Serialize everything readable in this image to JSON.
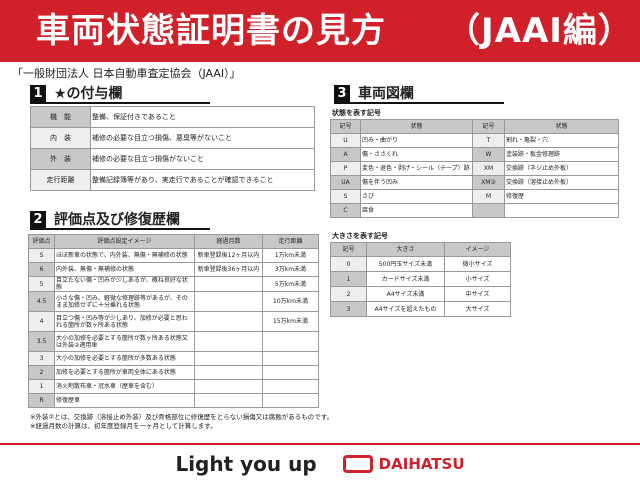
{
  "header": {
    "title": "車両状態証明書の見方",
    "subtitle": "（JAAI編）"
  },
  "org": "「一般財団法人 日本自動車査定協会（JAAI）」",
  "sec1": {
    "num": "1",
    "title": "★の付与欄",
    "rows": [
      [
        "機　能",
        "整備、保証付きであること"
      ],
      [
        "内　装",
        "補修の必要な目立つ損傷、悪臭等がないこと"
      ],
      [
        "外　装",
        "補修の必要な目立つ損傷がないこと"
      ],
      [
        "走行距離",
        "整備記録簿等があり、実走行であることが確認できること"
      ]
    ]
  },
  "sec2": {
    "num": "2",
    "title": "評価点及び修復歴欄",
    "headers": [
      "評価点",
      "評価点設定イメージ",
      "経過月数",
      "走行距離"
    ],
    "rows": [
      [
        "S",
        "ほぼ新車の状態で、内外装、無傷・無補修の状態",
        "新車登録後12ヶ月以内",
        "1万km未満"
      ],
      [
        "6",
        "内外装、無傷・無補修の状態",
        "新車登録後36ヶ月以内",
        "3万km未満"
      ],
      [
        "5",
        "目立たない傷・凹みが少しあるが、概ね良好な状態",
        "",
        "5万km未満"
      ],
      [
        "4.5",
        "小さな傷・凹み、軽微な修理跡等があるが、そのまま加修せずに十分乗れる状態",
        "",
        "10万km未満"
      ],
      [
        "4",
        "目立つ傷・凹み等が少しあり、加修が必要と思われる箇所が数ヶ所ある状態",
        "",
        "15万km未満"
      ],
      [
        "3.5",
        "大小の加修を必要とする箇所が数ヶ所ある状態又は外装②適用車",
        "",
        ""
      ],
      [
        "3",
        "大小の加修を必要とする箇所が多数ある状態",
        "",
        ""
      ],
      [
        "2",
        "加修を必要とする箇所が車両全体にある状態",
        "",
        ""
      ],
      [
        "1",
        "消火剤散布車・冠水車（歴車を含む）",
        "",
        ""
      ],
      [
        "R",
        "修復歴車",
        "",
        ""
      ]
    ]
  },
  "notes": [
    "※外装②とは、交換跡（溶接止め外装）及び骨格部位に修復歴をとらない損傷又は腐蝕があるものです。",
    "※経過月数の計算は、初年度登録月を一ヶ月として計算します。"
  ],
  "sec3": {
    "num": "3",
    "title": "車両図欄",
    "cap1": "状態を表す記号",
    "headers": [
      "記号",
      "状態",
      "記号",
      "状態"
    ],
    "rows": [
      [
        "U",
        "凹み・曲がり",
        "T",
        "割れ・亀裂・穴"
      ],
      [
        "A",
        "傷・ささくれ",
        "W",
        "塗装跡・板金修理跡"
      ],
      [
        "P",
        "変色・退色・剥げ・シール（テープ）跡",
        "XM",
        "交換跡（ネジ止め外板）"
      ],
      [
        "UA",
        "傷を伴う凹み",
        "XM②",
        "交換跡（溶接止め外板）"
      ],
      [
        "S",
        "さび",
        "M",
        "修復歴"
      ],
      [
        "C",
        "腐食",
        "",
        ""
      ]
    ],
    "cap2": "大きさを表す記号",
    "headers2": [
      "記号",
      "大きさ",
      "イメージ"
    ],
    "rows2": [
      [
        "0",
        "500円玉サイズ未満",
        "微小サイズ"
      ],
      [
        "1",
        "カードサイズ未満",
        "小サイズ"
      ],
      [
        "2",
        "A4サイズ未満",
        "中サイズ"
      ],
      [
        "3",
        "A4サイズを超えたもの",
        "大サイズ"
      ]
    ]
  },
  "footer": {
    "slogan": "Light you up",
    "brand": "DAIHATSU"
  },
  "colors": {
    "accent": "#d0202a"
  }
}
